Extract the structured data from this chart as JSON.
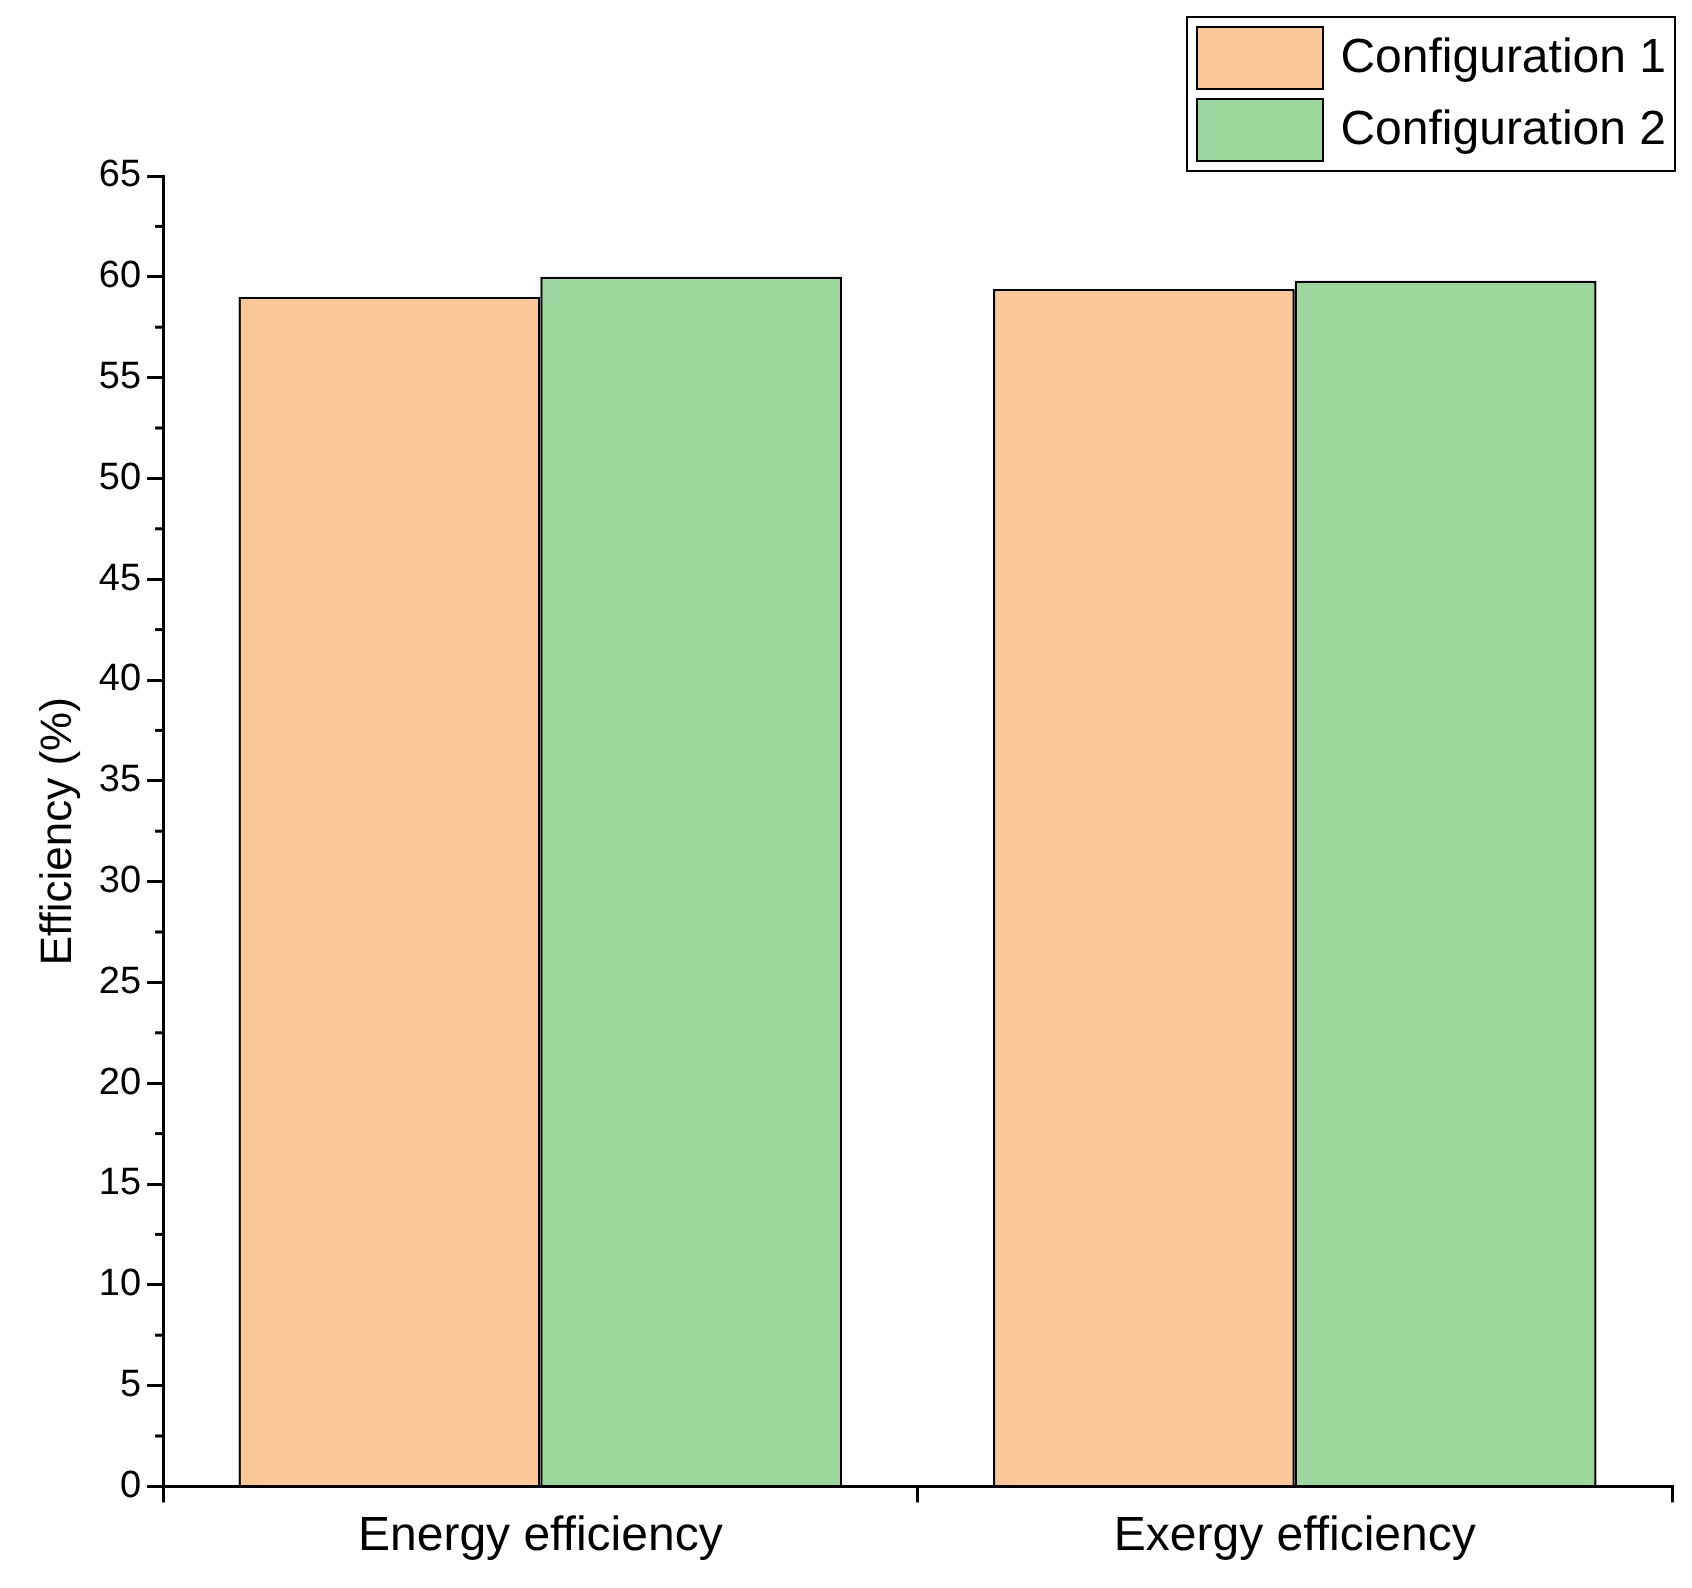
{
  "chart_data": {
    "type": "bar",
    "ylabel": "Efficiency (%)",
    "categories": [
      "Energy efficiency",
      "Exergy efficiency"
    ],
    "series": [
      {
        "name": "Configuration 1",
        "color": "#fac898",
        "values": [
          59.0,
          59.4
        ]
      },
      {
        "name": "Configuration 2",
        "color": "#9dd69d",
        "values": [
          60.0,
          59.8
        ]
      }
    ],
    "ylim": [
      0,
      65
    ],
    "yticks": [
      0,
      5,
      10,
      15,
      20,
      25,
      30,
      35,
      40,
      45,
      50,
      55,
      60,
      65
    ],
    "grid": false,
    "legend": "top right"
  }
}
